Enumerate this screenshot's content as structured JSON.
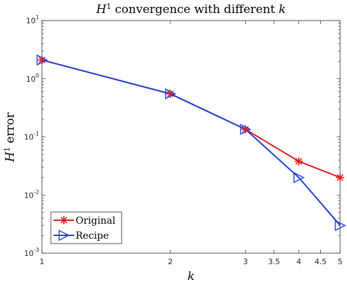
{
  "chart_data": {
    "type": "line",
    "title_prefix": "H",
    "title_sup": "1",
    "title_rest": " convergence with different ",
    "title_var": "k",
    "xlabel": "k",
    "ylabel_prefix": "H",
    "ylabel_sup": "1",
    "ylabel_rest": " error",
    "xscale": "log",
    "yscale": "log",
    "xlim": [
      1,
      5
    ],
    "ylim": [
      0.001,
      10
    ],
    "x_ticks": [
      1,
      2,
      3,
      3.5,
      4,
      4.5,
      5
    ],
    "x_tick_labels": [
      "1",
      "2",
      "3",
      "3.5",
      "4",
      "4.5",
      "5"
    ],
    "y_ticks": [
      {
        "value": 0.001,
        "base": "10",
        "exp": "-3"
      },
      {
        "value": 0.01,
        "base": "10",
        "exp": "-2"
      },
      {
        "value": 0.1,
        "base": "10",
        "exp": "-1"
      },
      {
        "value": 1,
        "base": "10",
        "exp": "0"
      },
      {
        "value": 10,
        "base": "10",
        "exp": "1"
      }
    ],
    "grid": false,
    "legend_position": "bottom-left",
    "series": [
      {
        "name": "Original",
        "color": "#e41a1c",
        "marker": "asterisk",
        "x": [
          1,
          2,
          3,
          4,
          5
        ],
        "y": [
          2.1,
          0.55,
          0.135,
          0.038,
          0.02
        ]
      },
      {
        "name": "Recipe",
        "color": "#1f3fd6",
        "marker": "triangle-right",
        "x": [
          1,
          2,
          3,
          4,
          5
        ],
        "y": [
          2.1,
          0.55,
          0.135,
          0.02,
          0.003
        ]
      }
    ]
  }
}
